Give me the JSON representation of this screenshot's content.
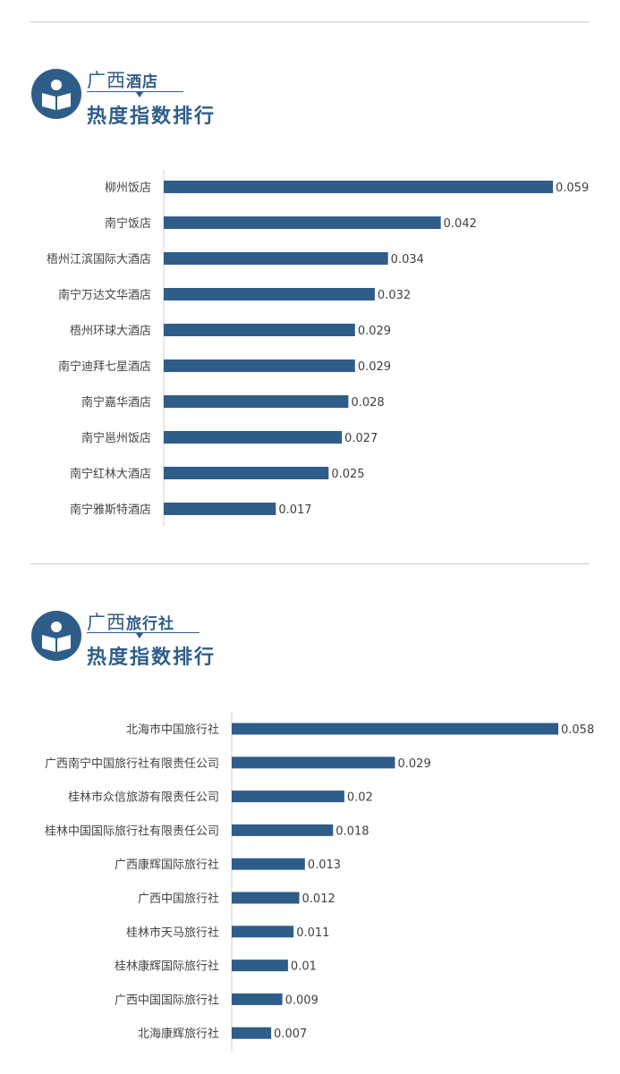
{
  "sections": [
    {
      "title_prefix": "广西",
      "title_suffix": "酒店",
      "title_main": "热度指数排行"
    },
    {
      "title_prefix": "广西",
      "title_suffix": "旅行社",
      "title_main": "热度指数排行"
    }
  ],
  "colors": {
    "bar": "#2f5d8a",
    "accent": "#2f5d8a"
  },
  "icons": {
    "section_badge": "open-book-icon"
  },
  "chart_data": [
    {
      "type": "bar",
      "orientation": "horizontal",
      "title": "广西酒店热度指数排行",
      "categories": [
        "柳州饭店",
        "南宁饭店",
        "梧州江滨国际大酒店",
        "南宁万达文华酒店",
        "梧州环球大酒店",
        "南宁迪拜七星酒店",
        "南宁嘉华酒店",
        "南宁邕州饭店",
        "南宁红林大酒店",
        "南宁雅斯特酒店"
      ],
      "values": [
        0.059,
        0.042,
        0.034,
        0.032,
        0.029,
        0.029,
        0.028,
        0.027,
        0.025,
        0.017
      ],
      "value_labels": [
        "0.059",
        "0.042",
        "0.034",
        "0.032",
        "0.029",
        "0.029",
        "0.028",
        "0.027",
        "0.025",
        "0.017"
      ],
      "xlim": [
        0,
        0.059
      ],
      "grid": false,
      "legend": "none"
    },
    {
      "type": "bar",
      "orientation": "horizontal",
      "title": "广西旅行社热度指数排行",
      "categories": [
        "北海市中国旅行社",
        "广西南宁中国旅行社有限责任公司",
        "桂林市众信旅游有限责任公司",
        "桂林中国国际旅行社有限责任公司",
        "广西康辉国际旅行社",
        "广西中国旅行社",
        "桂林市天马旅行社",
        "桂林康辉国际旅行社",
        "广西中国国际旅行社",
        "北海康辉旅行社"
      ],
      "values": [
        0.058,
        0.029,
        0.02,
        0.018,
        0.013,
        0.012,
        0.011,
        0.01,
        0.009,
        0.007
      ],
      "value_labels": [
        "0.058",
        "0.029",
        "0.02",
        "0.018",
        "0.013",
        "0.012",
        "0.011",
        "0.01",
        "0.009",
        "0.007"
      ],
      "xlim": [
        0,
        0.058
      ],
      "grid": false,
      "legend": "none"
    }
  ]
}
